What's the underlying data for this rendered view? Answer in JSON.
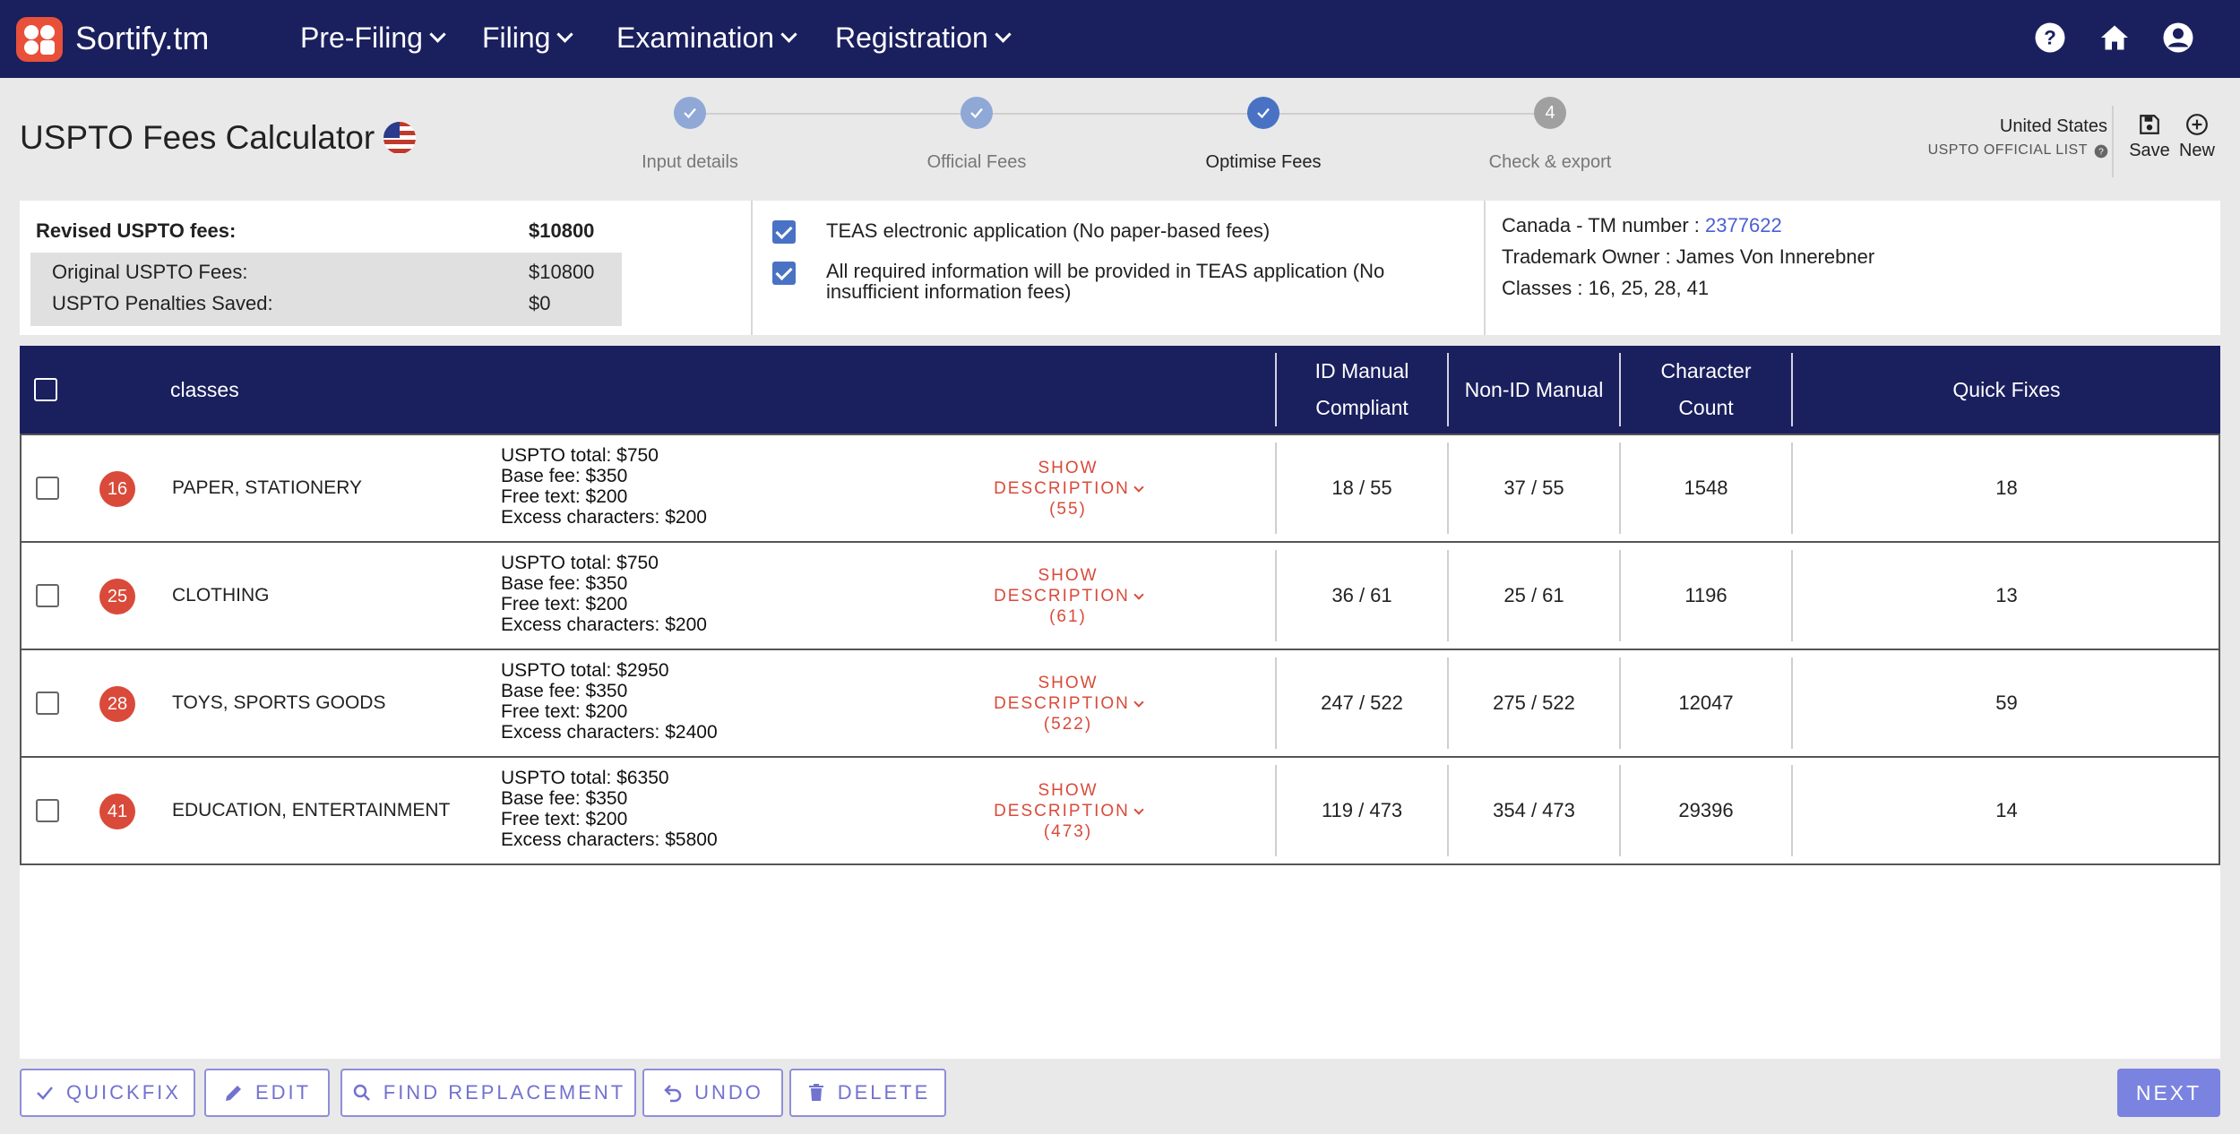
{
  "app": {
    "brand": "Sortify.tm"
  },
  "nav": [
    {
      "label": "Pre-Filing"
    },
    {
      "label": "Filing"
    },
    {
      "label": "Examination"
    },
    {
      "label": "Registration"
    }
  ],
  "header": {
    "title": "USPTO Fees Calculator"
  },
  "steps": [
    {
      "label": "Input details",
      "state": "done"
    },
    {
      "label": "Official Fees",
      "state": "done"
    },
    {
      "label": "Optimise Fees",
      "state": "active"
    },
    {
      "label": "Check & export",
      "state": "pending",
      "number": "4"
    }
  ],
  "jurisdiction": {
    "country": "United States",
    "list": "USPTO OFFICIAL LIST"
  },
  "actions": {
    "save": "Save",
    "new": "New"
  },
  "summary": {
    "revised_label": "Revised USPTO fees:",
    "revised_value": "$10800",
    "original_label": "Original USPTO Fees:",
    "original_value": "$10800",
    "penalties_label": "USPTO Penalties Saved:",
    "penalties_value": "$0",
    "teas_label": "TEAS electronic application (No paper-based fees)",
    "info_label": "All required information will be provided in TEAS application (No insufficient information fees)",
    "tm_label": "Canada - TM number : ",
    "tm_number": "2377622",
    "owner": "Trademark Owner : James Von Innerebner",
    "classes": "Classes : 16, 25, 28, 41"
  },
  "table": {
    "headers": {
      "classes": "classes",
      "id_manual_1": "ID Manual",
      "id_manual_2": "Compliant",
      "non_id": "Non-ID Manual",
      "char_1": "Character",
      "char_2": "Count",
      "quick": "Quick Fixes"
    },
    "show_label_1": "SHOW",
    "show_label_2": "DESCRIPTION",
    "rows": [
      {
        "num": "16",
        "name": "PAPER, STATIONERY",
        "total": "USPTO total: $750",
        "base": "Base fee: $350",
        "free": "Free text: $200",
        "excess": "Excess characters: $200",
        "count": "(55)",
        "id": "18 / 55",
        "nonid": "37 / 55",
        "chars": "1548",
        "fixes": "18"
      },
      {
        "num": "25",
        "name": "CLOTHING",
        "total": "USPTO total: $750",
        "base": "Base fee: $350",
        "free": "Free text: $200",
        "excess": "Excess characters: $200",
        "count": "(61)",
        "id": "36 / 61",
        "nonid": "25 / 61",
        "chars": "1196",
        "fixes": "13"
      },
      {
        "num": "28",
        "name": "TOYS, SPORTS GOODS",
        "total": "USPTO total: $2950",
        "base": "Base fee: $350",
        "free": "Free text: $200",
        "excess": "Excess characters: $2400",
        "count": "(522)",
        "id": "247 / 522",
        "nonid": "275 / 522",
        "chars": "12047",
        "fixes": "59"
      },
      {
        "num": "41",
        "name": "EDUCATION, ENTERTAINMENT",
        "total": "USPTO total: $6350",
        "base": "Base fee: $350",
        "free": "Free text: $200",
        "excess": "Excess characters: $5800",
        "count": "(473)",
        "id": "119 / 473",
        "nonid": "354 / 473",
        "chars": "29396",
        "fixes": "14"
      }
    ]
  },
  "buttons": {
    "quickfix": "QUICKFIX",
    "edit": "EDIT",
    "find": "FIND REPLACEMENT",
    "undo": "UNDO",
    "delete": "DELETE",
    "next": "NEXT"
  },
  "colors": {
    "nav": "#1a1f5e",
    "accent": "#d94a3a",
    "step_done": "#8fa8d6",
    "step_active": "#4a72c4",
    "button": "#7b83e0"
  }
}
